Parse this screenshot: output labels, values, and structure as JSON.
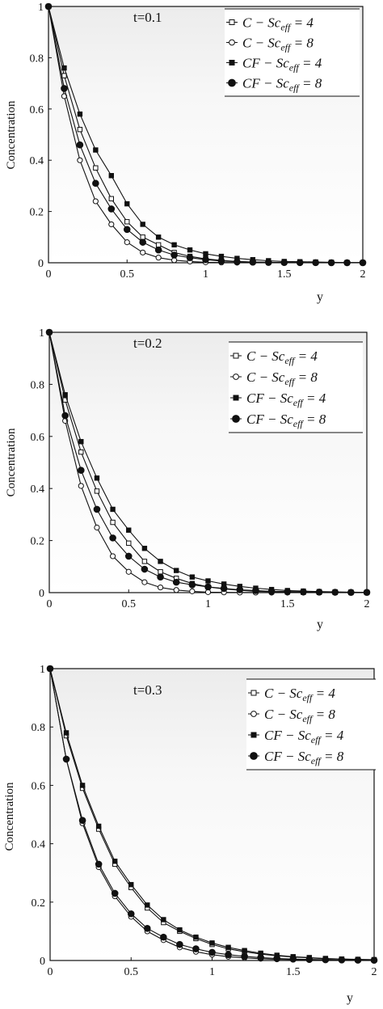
{
  "chart_data": [
    {
      "type": "line",
      "annotation": "t=0.1",
      "xlabel": "y",
      "ylabel": "Concentration",
      "xlim": [
        0,
        2
      ],
      "ylim": [
        0,
        1
      ],
      "xticks": [
        "0",
        "0.5",
        "1",
        "1.5",
        "2"
      ],
      "yticks": [
        "0",
        "0.2",
        "0.4",
        "0.6",
        "0.8",
        "1"
      ],
      "x": [
        0,
        0.1,
        0.2,
        0.3,
        0.4,
        0.5,
        0.6,
        0.7,
        0.8,
        0.9,
        1.0,
        1.1,
        1.2,
        1.3,
        1.4,
        1.5,
        1.6,
        1.7,
        1.8,
        1.9,
        2.0
      ],
      "series": [
        {
          "name": "C − Sc_eff = 4",
          "marker": "open-square",
          "values": [
            1,
            0.73,
            0.52,
            0.37,
            0.25,
            0.16,
            0.1,
            0.07,
            0.04,
            0.025,
            0.015,
            0.009,
            0.005,
            0.003,
            0.002,
            0.001,
            0.0008,
            0.0005,
            0.0003,
            0.0002,
            0.0001
          ]
        },
        {
          "name": "C − Sc_eff = 8",
          "marker": "open-circle",
          "values": [
            1,
            0.65,
            0.4,
            0.24,
            0.15,
            0.08,
            0.04,
            0.02,
            0.01,
            0.005,
            0.002,
            0.001,
            0.0005,
            0.0002,
            0.0001,
            0,
            0,
            0,
            0,
            0,
            0
          ]
        },
        {
          "name": "CF − Sc_eff = 4",
          "marker": "filled-square",
          "values": [
            1,
            0.76,
            0.58,
            0.44,
            0.34,
            0.23,
            0.15,
            0.1,
            0.07,
            0.05,
            0.035,
            0.025,
            0.017,
            0.012,
            0.008,
            0.005,
            0.004,
            0.003,
            0.002,
            0.001,
            0.001
          ]
        },
        {
          "name": "CF − Sc_eff = 8",
          "marker": "filled-circle",
          "values": [
            1,
            0.68,
            0.46,
            0.31,
            0.21,
            0.13,
            0.08,
            0.05,
            0.03,
            0.02,
            0.012,
            0.007,
            0.004,
            0.0025,
            0.0015,
            0.001,
            0.0006,
            0.0004,
            0.0002,
            0.0001,
            0.0001
          ]
        }
      ]
    },
    {
      "type": "line",
      "annotation": "t=0.2",
      "xlabel": "y",
      "ylabel": "Concentration",
      "xlim": [
        0,
        2
      ],
      "ylim": [
        0,
        1
      ],
      "xticks": [
        "0",
        "0.5",
        "1",
        "1.5",
        "2"
      ],
      "yticks": [
        "0",
        "0.2",
        "0.4",
        "0.6",
        "0.8",
        "1"
      ],
      "x": [
        0,
        0.1,
        0.2,
        0.3,
        0.4,
        0.5,
        0.6,
        0.7,
        0.8,
        0.9,
        1.0,
        1.1,
        1.2,
        1.3,
        1.4,
        1.5,
        1.6,
        1.7,
        1.8,
        1.9,
        2.0
      ],
      "series": [
        {
          "name": "C − Sc_eff = 4",
          "marker": "open-square",
          "values": [
            1,
            0.74,
            0.54,
            0.39,
            0.27,
            0.19,
            0.12,
            0.08,
            0.055,
            0.035,
            0.022,
            0.014,
            0.009,
            0.005,
            0.003,
            0.002,
            0.001,
            0.0008,
            0.0005,
            0.0003,
            0.0002
          ]
        },
        {
          "name": "C − Sc_eff = 8",
          "marker": "open-circle",
          "values": [
            1,
            0.66,
            0.41,
            0.25,
            0.14,
            0.08,
            0.04,
            0.02,
            0.01,
            0.005,
            0.002,
            0.001,
            0.0005,
            0.0002,
            0.0001,
            0,
            0,
            0,
            0,
            0,
            0
          ]
        },
        {
          "name": "CF − Sc_eff = 4",
          "marker": "filled-square",
          "values": [
            1,
            0.76,
            0.58,
            0.44,
            0.32,
            0.24,
            0.17,
            0.12,
            0.085,
            0.06,
            0.045,
            0.033,
            0.024,
            0.017,
            0.012,
            0.008,
            0.006,
            0.004,
            0.003,
            0.002,
            0.001
          ]
        },
        {
          "name": "CF − Sc_eff = 8",
          "marker": "filled-circle",
          "values": [
            1,
            0.68,
            0.47,
            0.32,
            0.21,
            0.14,
            0.09,
            0.06,
            0.04,
            0.03,
            0.022,
            0.016,
            0.011,
            0.008,
            0.005,
            0.004,
            0.003,
            0.002,
            0.0015,
            0.001,
            0.001
          ]
        }
      ]
    },
    {
      "type": "line",
      "annotation": "t=0.3",
      "xlabel": "y",
      "ylabel": "Concentration",
      "xlim": [
        0,
        2
      ],
      "ylim": [
        0,
        1
      ],
      "xticks": [
        "0",
        "0.5",
        "1",
        "1.5",
        "2"
      ],
      "yticks": [
        "0",
        "0.2",
        "0.4",
        "0.6",
        "0.8",
        "1"
      ],
      "x": [
        0,
        0.1,
        0.2,
        0.3,
        0.4,
        0.5,
        0.6,
        0.7,
        0.8,
        0.9,
        1.0,
        1.1,
        1.2,
        1.3,
        1.4,
        1.5,
        1.6,
        1.7,
        1.8,
        1.9,
        2.0
      ],
      "series": [
        {
          "name": "C − Sc_eff = 4",
          "marker": "open-square",
          "values": [
            1,
            0.77,
            0.59,
            0.45,
            0.33,
            0.25,
            0.18,
            0.13,
            0.1,
            0.075,
            0.055,
            0.04,
            0.03,
            0.022,
            0.016,
            0.012,
            0.009,
            0.006,
            0.005,
            0.003,
            0.002
          ]
        },
        {
          "name": "C − Sc_eff = 8",
          "marker": "open-circle",
          "values": [
            1,
            0.69,
            0.47,
            0.32,
            0.22,
            0.15,
            0.1,
            0.07,
            0.045,
            0.03,
            0.02,
            0.013,
            0.009,
            0.006,
            0.004,
            0.003,
            0.002,
            0.0013,
            0.0009,
            0.0006,
            0.0004
          ]
        },
        {
          "name": "CF − Sc_eff = 4",
          "marker": "filled-square",
          "values": [
            1,
            0.78,
            0.6,
            0.46,
            0.34,
            0.26,
            0.19,
            0.14,
            0.105,
            0.08,
            0.06,
            0.045,
            0.034,
            0.025,
            0.018,
            0.013,
            0.01,
            0.007,
            0.005,
            0.004,
            0.003
          ]
        },
        {
          "name": "CF − Sc_eff = 8",
          "marker": "filled-circle",
          "values": [
            1,
            0.69,
            0.48,
            0.33,
            0.23,
            0.16,
            0.11,
            0.08,
            0.055,
            0.04,
            0.028,
            0.02,
            0.014,
            0.01,
            0.007,
            0.005,
            0.0035,
            0.0025,
            0.0018,
            0.0012,
            0.0008
          ]
        }
      ]
    }
  ]
}
